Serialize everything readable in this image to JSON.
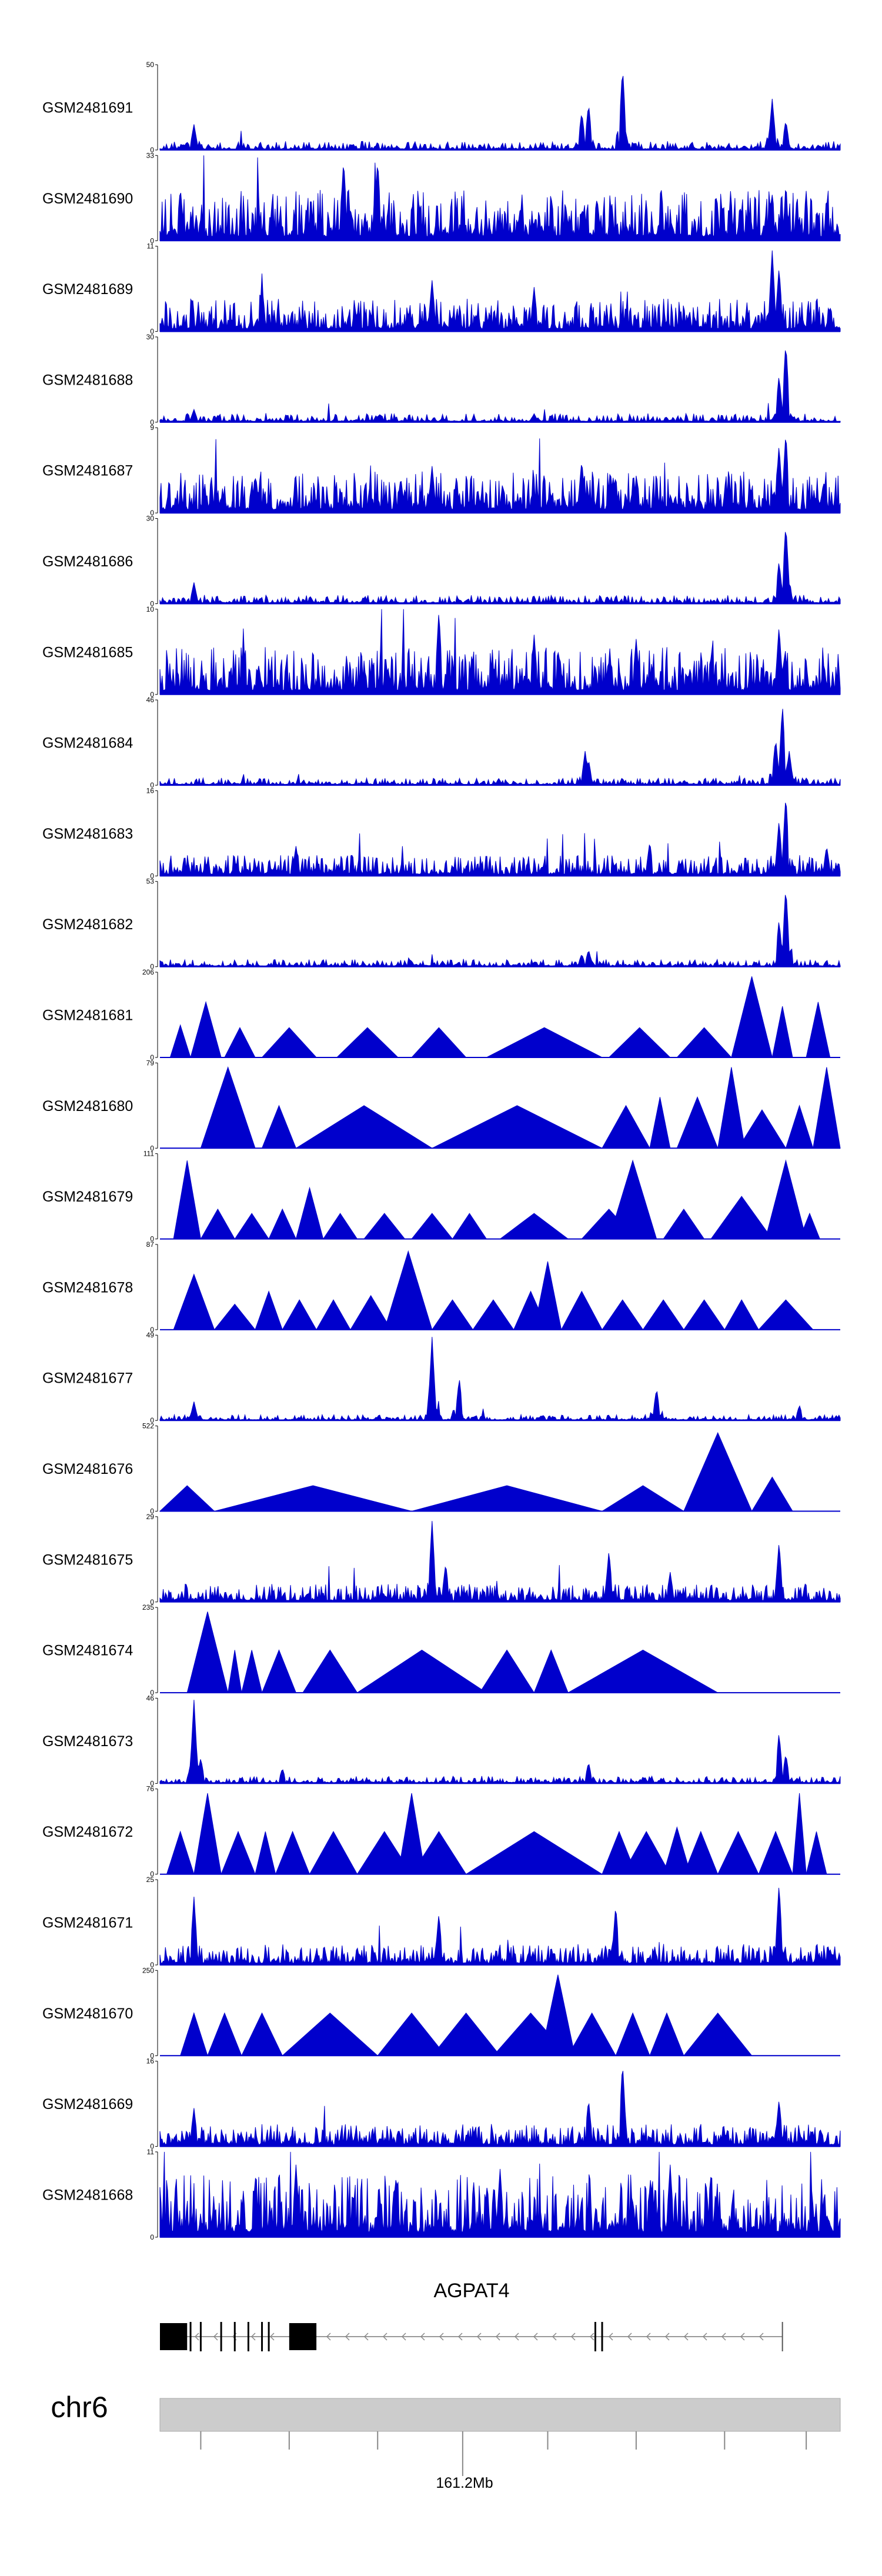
{
  "chart_data": {
    "type": "area",
    "title": "",
    "color": "#0000CC",
    "tracks": [
      {
        "name": "GSM2481691",
        "ymax": 50,
        "ymin": 0,
        "style": "peaks",
        "base": 0.06,
        "peaks": [
          [
            0.05,
            0.3
          ],
          [
            0.62,
            0.45
          ],
          [
            0.63,
            0.55
          ],
          [
            0.68,
            0.98
          ],
          [
            0.9,
            0.6
          ],
          [
            0.92,
            0.35
          ]
        ]
      },
      {
        "name": "GSM2481690",
        "ymax": 33,
        "ymin": 0,
        "style": "dense",
        "base": 0.34,
        "peaks": [
          [
            0.03,
            0.62
          ],
          [
            0.27,
            0.95
          ],
          [
            0.32,
            0.95
          ],
          [
            0.53,
            0.4
          ]
        ]
      },
      {
        "name": "GSM2481689",
        "ymax": 11,
        "ymin": 0,
        "style": "dense",
        "base": 0.22,
        "peaks": [
          [
            0.15,
            0.55
          ],
          [
            0.4,
            0.6
          ],
          [
            0.55,
            0.52
          ],
          [
            0.9,
            0.95
          ],
          [
            0.91,
            0.75
          ]
        ]
      },
      {
        "name": "GSM2481688",
        "ymax": 30,
        "ymin": 0,
        "style": "peaks",
        "base": 0.06,
        "peaks": [
          [
            0.05,
            0.15
          ],
          [
            0.55,
            0.1
          ],
          [
            0.92,
            0.95
          ],
          [
            0.91,
            0.55
          ]
        ]
      },
      {
        "name": "GSM2481687",
        "ymax": 9,
        "ymin": 0,
        "style": "dense",
        "base": 0.28,
        "peaks": [
          [
            0.4,
            0.55
          ],
          [
            0.62,
            0.62
          ],
          [
            0.92,
            0.95
          ],
          [
            0.91,
            0.8
          ]
        ]
      },
      {
        "name": "GSM2481686",
        "ymax": 30,
        "ymin": 0,
        "style": "peaks",
        "base": 0.06,
        "peaks": [
          [
            0.05,
            0.25
          ],
          [
            0.92,
            0.95
          ],
          [
            0.91,
            0.5
          ]
        ]
      },
      {
        "name": "GSM2481685",
        "ymax": 10,
        "ymin": 0,
        "style": "dense",
        "base": 0.32,
        "peaks": [
          [
            0.41,
            0.98
          ],
          [
            0.55,
            0.7
          ],
          [
            0.7,
            0.65
          ],
          [
            0.91,
            0.8
          ]
        ]
      },
      {
        "name": "GSM2481684",
        "ymax": 46,
        "ymin": 0,
        "style": "peaks",
        "base": 0.05,
        "peaks": [
          [
            0.625,
            0.4
          ],
          [
            0.63,
            0.3
          ],
          [
            0.915,
            0.95
          ],
          [
            0.905,
            0.55
          ],
          [
            0.925,
            0.4
          ]
        ]
      },
      {
        "name": "GSM2481683",
        "ymax": 16,
        "ymin": 0,
        "style": "dense",
        "base": 0.14,
        "peaks": [
          [
            0.2,
            0.35
          ],
          [
            0.72,
            0.4
          ],
          [
            0.92,
            0.95
          ],
          [
            0.91,
            0.65
          ],
          [
            0.98,
            0.35
          ]
        ]
      },
      {
        "name": "GSM2481682",
        "ymax": 53,
        "ymin": 0,
        "style": "peaks",
        "base": 0.05,
        "peaks": [
          [
            0.63,
            0.2
          ],
          [
            0.62,
            0.15
          ],
          [
            0.92,
            0.95
          ],
          [
            0.91,
            0.55
          ]
        ]
      },
      {
        "name": "GSM2481681",
        "ymax": 206,
        "ymin": 0,
        "style": "tri",
        "tri": [
          [
            0.015,
            0.045,
            0.38
          ],
          [
            0.045,
            0.09,
            0.65
          ],
          [
            0.095,
            0.14,
            0.35
          ],
          [
            0.15,
            0.23,
            0.35
          ],
          [
            0.26,
            0.35,
            0.35
          ],
          [
            0.37,
            0.45,
            0.35
          ],
          [
            0.48,
            0.65,
            0.35
          ],
          [
            0.66,
            0.75,
            0.35
          ],
          [
            0.76,
            0.84,
            0.35
          ],
          [
            0.84,
            0.9,
            0.95
          ],
          [
            0.9,
            0.93,
            0.6
          ],
          [
            0.95,
            0.985,
            0.65
          ]
        ]
      },
      {
        "name": "GSM2481680",
        "ymax": 79,
        "ymin": 0,
        "style": "tri",
        "tri": [
          [
            0.06,
            0.14,
            0.95
          ],
          [
            0.15,
            0.2,
            0.5
          ],
          [
            0.2,
            0.4,
            0.5
          ],
          [
            0.4,
            0.65,
            0.5
          ],
          [
            0.65,
            0.72,
            0.5
          ],
          [
            0.72,
            0.75,
            0.6
          ],
          [
            0.76,
            0.82,
            0.6
          ],
          [
            0.82,
            0.86,
            0.95
          ],
          [
            0.85,
            0.92,
            0.45
          ],
          [
            0.92,
            0.96,
            0.5
          ],
          [
            0.96,
            1.0,
            0.95
          ]
        ]
      },
      {
        "name": "GSM2481679",
        "ymax": 111,
        "ymin": 0,
        "style": "tri",
        "tri": [
          [
            0.02,
            0.06,
            0.92
          ],
          [
            0.06,
            0.11,
            0.35
          ],
          [
            0.11,
            0.16,
            0.3
          ],
          [
            0.16,
            0.2,
            0.35
          ],
          [
            0.2,
            0.24,
            0.6
          ],
          [
            0.24,
            0.29,
            0.3
          ],
          [
            0.3,
            0.36,
            0.3
          ],
          [
            0.37,
            0.43,
            0.3
          ],
          [
            0.43,
            0.48,
            0.3
          ],
          [
            0.5,
            0.6,
            0.3
          ],
          [
            0.62,
            0.7,
            0.35
          ],
          [
            0.66,
            0.73,
            0.92
          ],
          [
            0.74,
            0.8,
            0.35
          ],
          [
            0.81,
            0.9,
            0.5
          ],
          [
            0.89,
            0.95,
            0.92
          ],
          [
            0.94,
            0.97,
            0.3
          ]
        ]
      },
      {
        "name": "GSM2481678",
        "ymax": 87,
        "ymin": 0,
        "style": "tri",
        "tri": [
          [
            0.02,
            0.08,
            0.65
          ],
          [
            0.08,
            0.14,
            0.3
          ],
          [
            0.14,
            0.18,
            0.45
          ],
          [
            0.18,
            0.23,
            0.35
          ],
          [
            0.23,
            0.28,
            0.35
          ],
          [
            0.28,
            0.34,
            0.4
          ],
          [
            0.33,
            0.4,
            0.92
          ],
          [
            0.4,
            0.46,
            0.35
          ],
          [
            0.46,
            0.52,
            0.35
          ],
          [
            0.52,
            0.57,
            0.45
          ],
          [
            0.55,
            0.59,
            0.8
          ],
          [
            0.59,
            0.65,
            0.45
          ],
          [
            0.65,
            0.71,
            0.35
          ],
          [
            0.71,
            0.77,
            0.35
          ],
          [
            0.77,
            0.83,
            0.35
          ],
          [
            0.83,
            0.88,
            0.35
          ],
          [
            0.88,
            0.96,
            0.35
          ]
        ]
      },
      {
        "name": "GSM2481677",
        "ymax": 49,
        "ymin": 0,
        "style": "peaks",
        "base": 0.04,
        "peaks": [
          [
            0.05,
            0.22
          ],
          [
            0.4,
            0.98
          ],
          [
            0.44,
            0.5
          ],
          [
            0.73,
            0.38
          ],
          [
            0.94,
            0.18
          ]
        ]
      },
      {
        "name": "GSM2481676",
        "ymax": 522,
        "ymin": 0,
        "style": "tri",
        "tri": [
          [
            0.0,
            0.08,
            0.3
          ],
          [
            0.08,
            0.37,
            0.3
          ],
          [
            0.37,
            0.65,
            0.3
          ],
          [
            0.65,
            0.77,
            0.3
          ],
          [
            0.77,
            0.87,
            0.92
          ],
          [
            0.87,
            0.93,
            0.4
          ]
        ]
      },
      {
        "name": "GSM2481675",
        "ymax": 29,
        "ymin": 0,
        "style": "dense",
        "base": 0.12,
        "peaks": [
          [
            0.4,
            0.95
          ],
          [
            0.42,
            0.45
          ],
          [
            0.66,
            0.6
          ],
          [
            0.91,
            0.7
          ],
          [
            0.75,
            0.35
          ]
        ]
      },
      {
        "name": "GSM2481674",
        "ymax": 235,
        "ymin": 0,
        "style": "tri",
        "tri": [
          [
            0.04,
            0.1,
            0.95
          ],
          [
            0.1,
            0.12,
            0.5
          ],
          [
            0.12,
            0.15,
            0.5
          ],
          [
            0.15,
            0.2,
            0.5
          ],
          [
            0.21,
            0.29,
            0.5
          ],
          [
            0.29,
            0.48,
            0.5
          ],
          [
            0.47,
            0.55,
            0.5
          ],
          [
            0.55,
            0.6,
            0.5
          ],
          [
            0.6,
            0.82,
            0.5
          ]
        ]
      },
      {
        "name": "GSM2481673",
        "ymax": 46,
        "ymin": 0,
        "style": "peaks",
        "base": 0.05,
        "peaks": [
          [
            0.05,
            0.98
          ],
          [
            0.06,
            0.3
          ],
          [
            0.18,
            0.18
          ],
          [
            0.63,
            0.25
          ],
          [
            0.91,
            0.6
          ],
          [
            0.92,
            0.35
          ]
        ]
      },
      {
        "name": "GSM2481672",
        "ymax": 76,
        "ymin": 0,
        "style": "tri",
        "tri": [
          [
            0.01,
            0.05,
            0.5
          ],
          [
            0.05,
            0.09,
            0.95
          ],
          [
            0.09,
            0.14,
            0.5
          ],
          [
            0.14,
            0.17,
            0.5
          ],
          [
            0.17,
            0.22,
            0.5
          ],
          [
            0.22,
            0.29,
            0.5
          ],
          [
            0.29,
            0.37,
            0.5
          ],
          [
            0.35,
            0.39,
            0.95
          ],
          [
            0.37,
            0.45,
            0.5
          ],
          [
            0.45,
            0.65,
            0.5
          ],
          [
            0.65,
            0.7,
            0.5
          ],
          [
            0.68,
            0.75,
            0.5
          ],
          [
            0.74,
            0.78,
            0.55
          ],
          [
            0.77,
            0.82,
            0.5
          ],
          [
            0.82,
            0.88,
            0.5
          ],
          [
            0.88,
            0.93,
            0.5
          ],
          [
            0.93,
            0.95,
            0.95
          ],
          [
            0.95,
            0.98,
            0.5
          ]
        ]
      },
      {
        "name": "GSM2481671",
        "ymax": 25,
        "ymin": 0,
        "style": "dense",
        "base": 0.14,
        "peaks": [
          [
            0.05,
            0.8
          ],
          [
            0.41,
            0.6
          ],
          [
            0.67,
            0.7
          ],
          [
            0.91,
            0.95
          ]
        ]
      },
      {
        "name": "GSM2481670",
        "ymax": 250,
        "ymin": 0,
        "style": "tri",
        "tri": [
          [
            0.03,
            0.07,
            0.5
          ],
          [
            0.07,
            0.12,
            0.5
          ],
          [
            0.12,
            0.18,
            0.5
          ],
          [
            0.18,
            0.32,
            0.5
          ],
          [
            0.32,
            0.42,
            0.5
          ],
          [
            0.4,
            0.5,
            0.5
          ],
          [
            0.49,
            0.6,
            0.5
          ],
          [
            0.56,
            0.61,
            0.95
          ],
          [
            0.6,
            0.67,
            0.5
          ],
          [
            0.67,
            0.72,
            0.5
          ],
          [
            0.72,
            0.77,
            0.5
          ],
          [
            0.77,
            0.87,
            0.5
          ]
        ]
      },
      {
        "name": "GSM2481669",
        "ymax": 16,
        "ymin": 0,
        "style": "dense",
        "base": 0.15,
        "peaks": [
          [
            0.05,
            0.45
          ],
          [
            0.63,
            0.55
          ],
          [
            0.68,
            0.98
          ],
          [
            0.91,
            0.55
          ]
        ]
      },
      {
        "name": "GSM2481668",
        "ymax": 11,
        "ymin": 0,
        "style": "dense",
        "base": 0.42,
        "peaks": [
          [
            0.2,
            0.85
          ],
          [
            0.5,
            0.8
          ],
          [
            0.75,
            0.85
          ]
        ]
      }
    ],
    "gene": {
      "name": "AGPAT4",
      "strand": "-",
      "thick_exons": [
        [
          0.0,
          0.04
        ],
        [
          0.19,
          0.23
        ]
      ],
      "thin_exons": [
        0.045,
        0.06,
        0.09,
        0.11,
        0.13,
        0.15,
        0.16,
        0.64,
        0.65
      ],
      "intron_end": 0.915
    },
    "axis": {
      "chromosome": "chr6",
      "position_label": "161.2Mb",
      "labeled_tick": 0.445,
      "ticks": [
        0.06,
        0.19,
        0.32,
        0.445,
        0.57,
        0.7,
        0.83,
        0.95
      ]
    }
  }
}
